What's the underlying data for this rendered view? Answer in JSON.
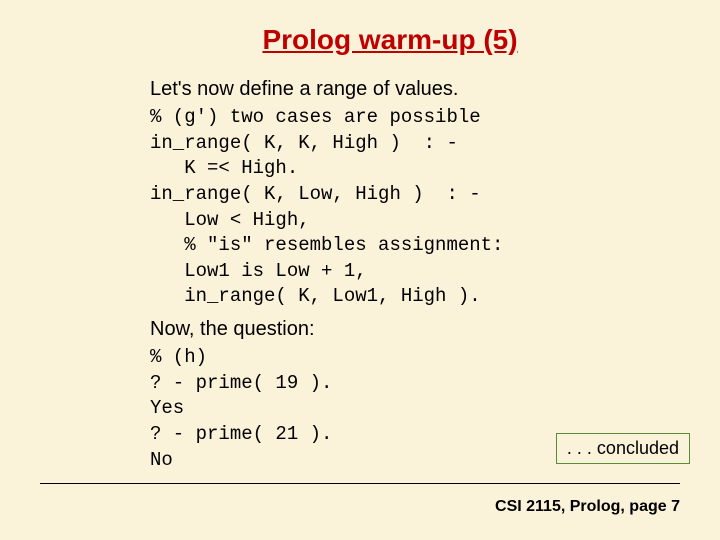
{
  "slide": {
    "background_color": "#fbf2da",
    "title": {
      "text": "Prolog warm-up (5)",
      "color": "#c00000",
      "fontsize": 28,
      "underline": true,
      "bold": true
    },
    "intro": {
      "text": "Let's now define a range of values.",
      "fontsize": 20
    },
    "code_block_1": {
      "font_family": "Courier New",
      "fontsize": 19,
      "lines": [
        "% (g') two cases are possible",
        "in_range( K, K, High )  : -",
        "   K =< High.",
        "in_range( K, Low, High )  : -",
        "   Low < High,",
        "   % \"is\" resembles assignment:",
        "   Low1 is Low + 1,",
        "   in_range( K, Low1, High )."
      ]
    },
    "question_label": {
      "text": "Now, the question:",
      "fontsize": 20
    },
    "code_block_2": {
      "font_family": "Courier New",
      "fontsize": 19,
      "lines": [
        "% (h)",
        "? - prime( 19 ).",
        "Yes",
        "? - prime( 21 ).",
        "No"
      ]
    },
    "concluded": {
      "text": ". . . concluded",
      "border_color": "#5a8a3a",
      "fontsize": 18
    },
    "footer": {
      "course": "CSI 2115",
      "topic": "Prolog",
      "page_label": "page",
      "page_number": 7,
      "fontsize": 16,
      "bold": true
    },
    "divider_color": "#000000"
  }
}
